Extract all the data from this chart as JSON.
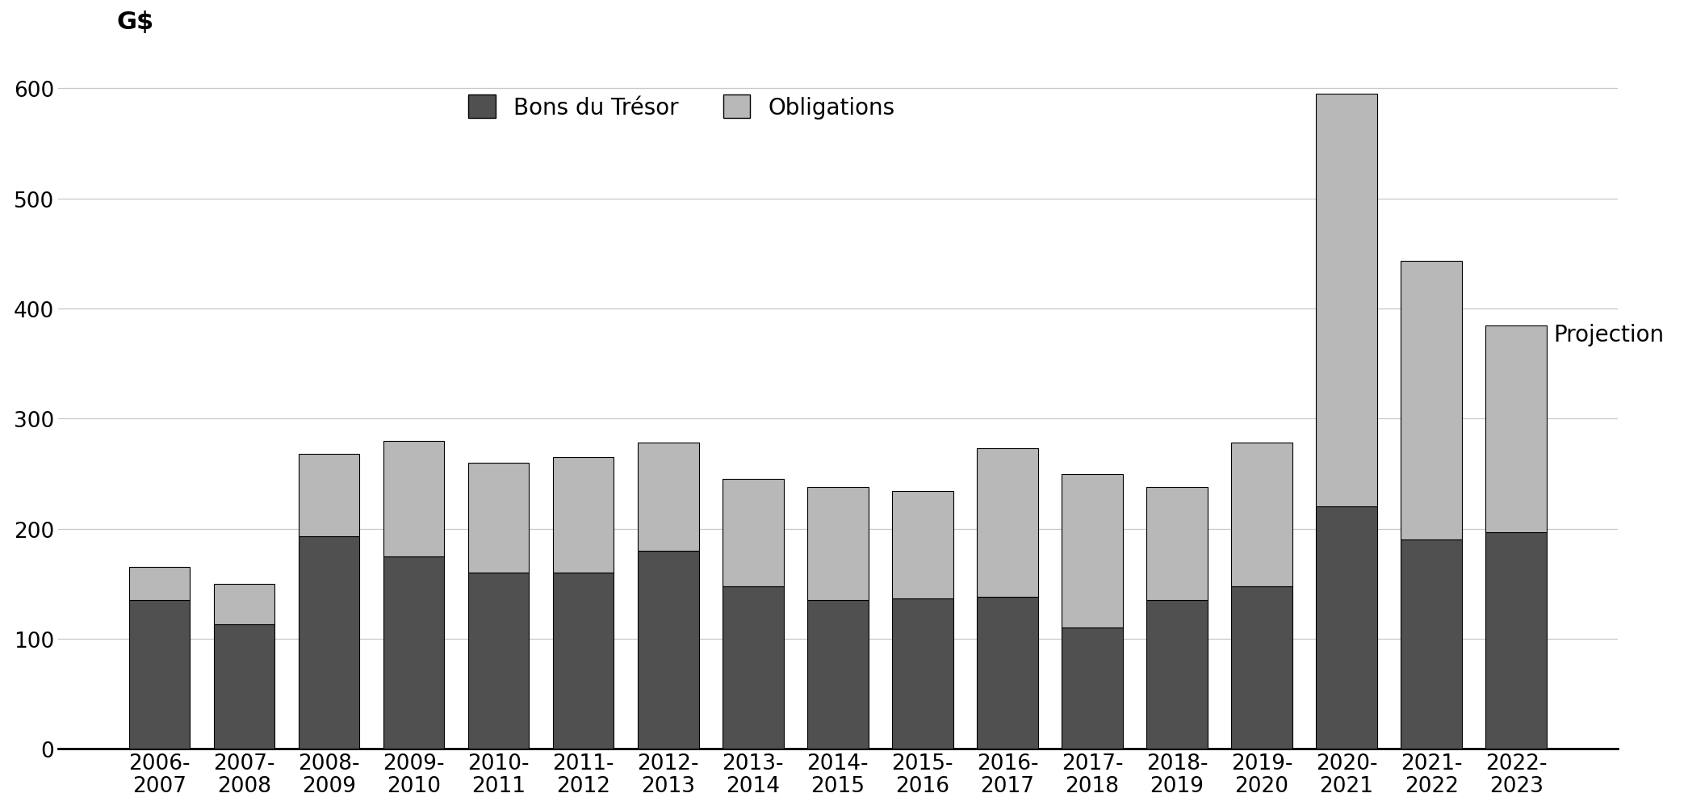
{
  "categories": [
    "2006-\n2007",
    "2007-\n2008",
    "2008-\n2009",
    "2009-\n2010",
    "2010-\n2011",
    "2011-\n2012",
    "2012-\n2013",
    "2013-\n2014",
    "2014-\n2015",
    "2015-\n2016",
    "2016-\n2017",
    "2017-\n2018",
    "2018-\n2019",
    "2019-\n2020",
    "2020-\n2021",
    "2021-\n2022",
    "2022-\n2023"
  ],
  "bons_du_tresor": [
    135,
    113,
    193,
    175,
    160,
    160,
    180,
    148,
    135,
    137,
    138,
    110,
    135,
    148,
    220,
    190,
    197
  ],
  "obligations": [
    30,
    37,
    75,
    105,
    100,
    105,
    98,
    97,
    103,
    97,
    135,
    140,
    103,
    130,
    375,
    253,
    188
  ],
  "color_bons": "#505050",
  "color_obligations": "#b8b8b8",
  "ylim": [
    0,
    620
  ],
  "yticks": [
    0,
    100,
    200,
    300,
    400,
    500,
    600
  ],
  "legend_bons": "Bons du Trésor",
  "legend_obligations": "Obligations",
  "projection_label": "Projection",
  "projection_bar_index": 16,
  "background_color": "#ffffff",
  "grid_color": "#c8c8c8",
  "bar_edge_color": "#000000",
  "bar_width": 0.72,
  "label_fontsize": 22,
  "tick_fontsize": 19,
  "legend_fontsize": 20,
  "annotation_fontsize": 20
}
